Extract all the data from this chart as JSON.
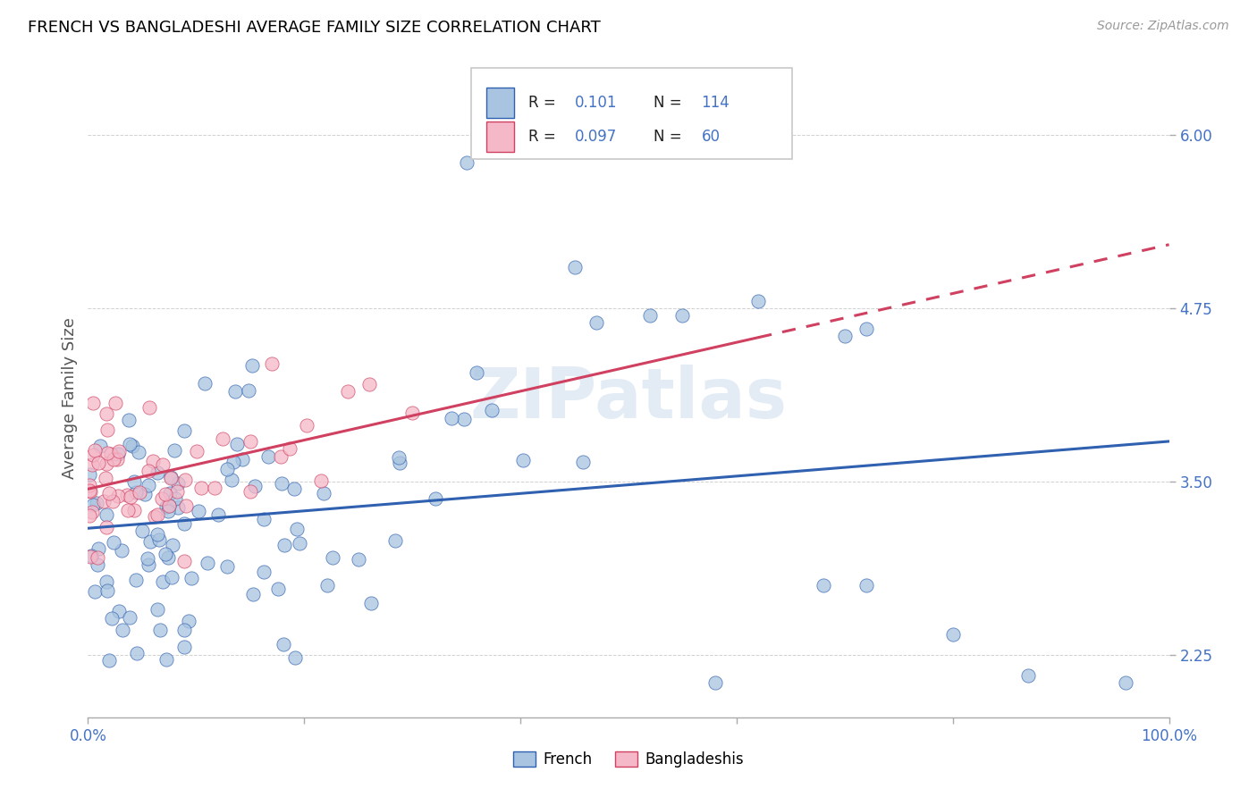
{
  "title": "FRENCH VS BANGLADESHI AVERAGE FAMILY SIZE CORRELATION CHART",
  "source": "Source: ZipAtlas.com",
  "ylabel": "Average Family Size",
  "yticks": [
    2.25,
    3.5,
    4.75,
    6.0
  ],
  "french_R": 0.101,
  "french_N": 114,
  "bangladeshi_R": 0.097,
  "bangladeshi_N": 60,
  "french_color": "#a8c4e0",
  "bangladeshi_color": "#f4b8c8",
  "french_line_color": "#3060b0",
  "bangladeshi_line_color": "#d04060",
  "text_color": "#4472c4",
  "watermark": "ZIPatlas",
  "legend_french": "French",
  "legend_bangladeshi": "Bangladeshis",
  "ylim_min": 1.8,
  "ylim_max": 6.4
}
